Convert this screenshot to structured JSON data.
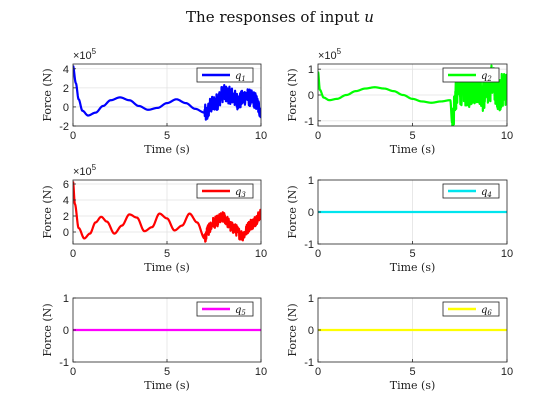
{
  "title": "The responses of input u",
  "chart_data": [
    {
      "type": "line",
      "id": "q1",
      "xlabel": "Time (s)",
      "ylabel": "Force (N)",
      "xlim": [
        0,
        10
      ],
      "ylim": [
        -2,
        4.5
      ],
      "yticks": [
        -2,
        0,
        2,
        4
      ],
      "xticks": [
        0,
        5,
        10
      ],
      "exponent": "5",
      "grid": true,
      "legend": "top-right",
      "series": [
        {
          "name": "q1",
          "color": "#0000ff",
          "x": [
            0,
            0.15,
            0.3,
            0.5,
            0.8,
            1.2,
            1.6,
            2.0,
            2.5,
            3.0,
            3.5,
            4.0,
            4.5,
            5.0,
            5.5,
            6.0,
            6.5,
            7.0,
            7.1,
            7.3,
            7.6,
            8.0,
            8.4,
            8.8,
            9.2,
            9.6,
            10.0
          ],
          "y": [
            4.3,
            2.5,
            0.8,
            -0.4,
            -0.9,
            -0.6,
            0.1,
            0.7,
            1.0,
            0.7,
            0.1,
            -0.3,
            -0.1,
            0.4,
            0.8,
            0.4,
            -0.2,
            -0.6,
            -0.8,
            0.1,
            0.5,
            1.4,
            1.2,
            0.6,
            1.1,
            0.8,
            -0.3
          ],
          "noise_from": 7.0,
          "noise_amp": 0.9
        }
      ]
    },
    {
      "type": "line",
      "id": "q2",
      "xlabel": "Time (s)",
      "ylabel": "Force (N)",
      "xlim": [
        0,
        10
      ],
      "ylim": [
        -1.2,
        1.2
      ],
      "yticks": [
        -1,
        0,
        1
      ],
      "xticks": [
        0,
        5,
        10
      ],
      "exponent": "5",
      "grid": true,
      "legend": "top-right",
      "series": [
        {
          "name": "q2",
          "color": "#00ff00",
          "x": [
            0,
            0.1,
            0.3,
            0.6,
            1.0,
            1.5,
            2.0,
            2.5,
            3.0,
            3.5,
            4.0,
            4.5,
            5.0,
            5.5,
            6.0,
            6.5,
            7.0,
            7.1,
            7.3,
            7.6,
            8.0,
            8.4,
            8.8,
            9.2,
            9.6,
            10.0
          ],
          "y": [
            0.9,
            0.2,
            -0.1,
            -0.2,
            -0.15,
            0.0,
            0.15,
            0.25,
            0.3,
            0.25,
            0.15,
            0.0,
            -0.15,
            -0.25,
            -0.3,
            -0.25,
            -0.2,
            -1.1,
            0.1,
            0.3,
            0.2,
            0.4,
            0.0,
            0.5,
            0.1,
            0.3
          ],
          "noise_from": 7.1,
          "noise_amp": 0.7
        }
      ]
    },
    {
      "type": "line",
      "id": "q3",
      "xlabel": "Time (s)",
      "ylabel": "Force (N)",
      "xlim": [
        0,
        10
      ],
      "ylim": [
        -1.5,
        6.5
      ],
      "yticks": [
        0,
        2,
        4,
        6
      ],
      "xticks": [
        0,
        5,
        10
      ],
      "exponent": "5",
      "grid": true,
      "legend": "top-right",
      "series": [
        {
          "name": "q3",
          "color": "#ff0000",
          "x": [
            0,
            0.1,
            0.3,
            0.6,
            0.9,
            1.2,
            1.5,
            1.8,
            2.2,
            2.6,
            3.0,
            3.4,
            3.8,
            4.2,
            4.6,
            5.0,
            5.4,
            5.8,
            6.2,
            6.6,
            7.0,
            7.2,
            7.5,
            8.0,
            8.5,
            9.0,
            9.5,
            10.0
          ],
          "y": [
            6.3,
            3.5,
            0.5,
            -0.8,
            -0.2,
            1.2,
            1.9,
            1.3,
            -0.2,
            0.8,
            2.2,
            1.8,
            0.1,
            0.6,
            2.3,
            1.7,
            0.2,
            0.8,
            2.3,
            1.2,
            -0.8,
            0.3,
            1.2,
            1.8,
            0.5,
            -0.4,
            1.0,
            2.2
          ],
          "noise_from": 7.0,
          "noise_amp": 0.7
        }
      ]
    },
    {
      "type": "line",
      "id": "q4",
      "xlabel": "Time (s)",
      "ylabel": "Force (N)",
      "xlim": [
        0,
        10
      ],
      "ylim": [
        -1,
        1
      ],
      "yticks": [
        -1,
        0,
        1
      ],
      "xticks": [
        0,
        5,
        10
      ],
      "exponent": "",
      "grid": true,
      "legend": "top-right",
      "series": [
        {
          "name": "q4",
          "color": "#00e5ee",
          "x": [
            0,
            10
          ],
          "y": [
            0,
            0
          ],
          "noise_from": null,
          "noise_amp": 0
        }
      ]
    },
    {
      "type": "line",
      "id": "q5",
      "xlabel": "Time (s)",
      "ylabel": "Force (N)",
      "xlim": [
        0,
        10
      ],
      "ylim": [
        -1,
        1
      ],
      "yticks": [
        -1,
        0,
        1
      ],
      "xticks": [
        0,
        5,
        10
      ],
      "exponent": "",
      "grid": true,
      "legend": "top-right",
      "series": [
        {
          "name": "q5",
          "color": "#ff00ff",
          "x": [
            0,
            10
          ],
          "y": [
            0,
            0
          ],
          "noise_from": null,
          "noise_amp": 0
        }
      ]
    },
    {
      "type": "line",
      "id": "q6",
      "xlabel": "Time (s)",
      "ylabel": "Force (N)",
      "xlim": [
        0,
        10
      ],
      "ylim": [
        -1,
        1
      ],
      "yticks": [
        -1,
        0,
        1
      ],
      "xticks": [
        0,
        5,
        10
      ],
      "exponent": "",
      "grid": true,
      "legend": "top-right",
      "series": [
        {
          "name": "q6",
          "color": "#ffff00",
          "x": [
            0,
            10
          ],
          "y": [
            0,
            0
          ],
          "noise_from": null,
          "noise_amp": 0
        }
      ]
    }
  ]
}
